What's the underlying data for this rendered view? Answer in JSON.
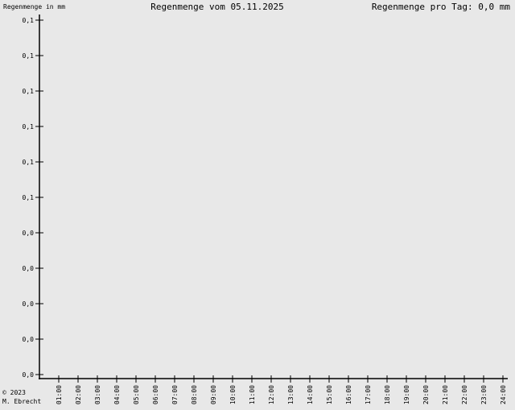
{
  "header": {
    "ylabel": "Regenmenge in mm",
    "title": "Regenmenge vom 05.11.2025",
    "daily_total": "Regenmenge pro Tag: 0,0 mm"
  },
  "footer": {
    "copyright": "© 2023",
    "author": "M. Ebrecht"
  },
  "chart_data": {
    "type": "bar",
    "title": "Regenmenge vom 05.11.2025",
    "ylabel": "Regenmenge in mm",
    "y_tick_labels": [
      "0,1",
      "0,1",
      "0,1",
      "0,1",
      "0,1",
      "0,1",
      "0,0",
      "0,0",
      "0,0",
      "0,0",
      "0,0"
    ],
    "categories": [
      "01:00",
      "02:00",
      "03:00",
      "04:00",
      "05:00",
      "06:00",
      "07:00",
      "08:00",
      "09:00",
      "10:00",
      "11:00",
      "12:00",
      "13:00",
      "14:00",
      "15:00",
      "16:00",
      "17:00",
      "18:00",
      "19:00",
      "20:00",
      "21:00",
      "22:00",
      "23:00",
      "24:00"
    ],
    "values": [
      0,
      0,
      0,
      0,
      0,
      0,
      0,
      0,
      0,
      0,
      0,
      0,
      0,
      0,
      0,
      0,
      0,
      0,
      0,
      0,
      0,
      0,
      0,
      0
    ],
    "ylim": [
      0,
      0.1
    ],
    "grid": false,
    "colors": {
      "background": "#e8e8e8",
      "axis": "#000000"
    }
  }
}
